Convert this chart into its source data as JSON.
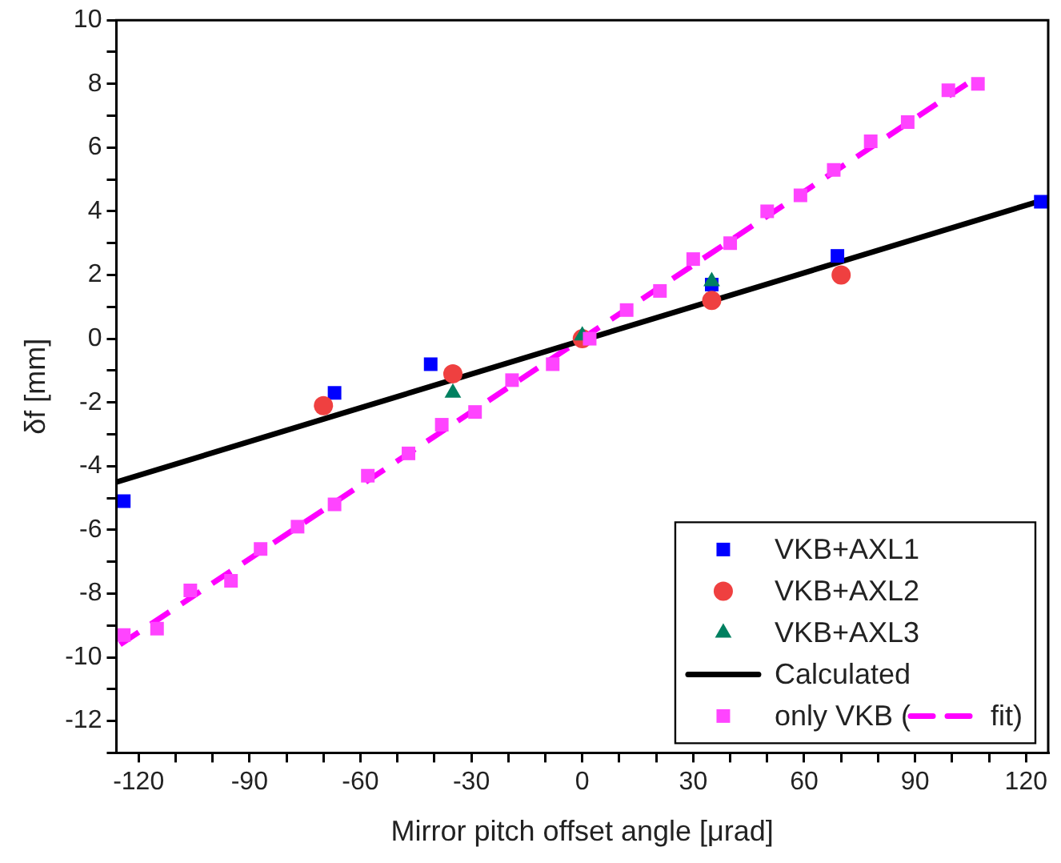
{
  "chart_data": {
    "type": "scatter",
    "xlabel": "Mirror pitch offset angle [μrad]",
    "ylabel": "δf [mm]",
    "xlim": [
      -126,
      126
    ],
    "xticks": [
      -120,
      {
        "value": -110,
        "label": null
      },
      {
        "value": -100,
        "label": null
      },
      -90,
      {
        "value": -80,
        "label": null
      },
      {
        "value": -70,
        "label": null
      },
      -60,
      {
        "value": -50,
        "label": null
      },
      {
        "value": -40,
        "label": null
      },
      -30,
      {
        "value": -20,
        "label": null
      },
      {
        "value": -10,
        "label": null
      },
      0,
      {
        "value": 10,
        "label": null
      },
      {
        "value": 20,
        "label": null
      },
      30,
      {
        "value": 40,
        "label": null
      },
      {
        "value": 50,
        "label": null
      },
      60,
      {
        "value": 70,
        "label": null
      },
      {
        "value": 80,
        "label": null
      },
      90,
      {
        "value": 100,
        "label": null
      },
      {
        "value": 110,
        "label": null
      },
      120
    ],
    "ylim": [
      -13,
      10
    ],
    "yticks": [
      {
        "value": -13,
        "label": null
      },
      -12,
      {
        "value": -11,
        "label": null
      },
      -10,
      {
        "value": -9,
        "label": null
      },
      -8,
      {
        "value": -7,
        "label": null
      },
      -6,
      {
        "value": -5,
        "label": null
      },
      -4,
      {
        "value": -3,
        "label": null
      },
      -2,
      {
        "value": -1,
        "label": null
      },
      0,
      {
        "value": 1,
        "label": null
      },
      2,
      {
        "value": 3,
        "label": null
      },
      4,
      {
        "value": 5,
        "label": null
      },
      6,
      {
        "value": 7,
        "label": null
      },
      8,
      {
        "value": 9,
        "label": null
      },
      10
    ],
    "grid": false,
    "legend": "bottom right",
    "series": [
      {
        "name": "VKB+AXL1",
        "type": "scatter",
        "marker": "square",
        "color": "#0000ff",
        "x": [
          -124,
          -67,
          -41,
          0,
          35,
          69,
          124
        ],
        "values": [
          -5.1,
          -1.7,
          -0.8,
          null,
          1.7,
          2.6,
          4.3
        ]
      },
      {
        "name": "VKB+AXL2",
        "type": "scatter",
        "marker": "circle",
        "color": "#ef4040",
        "x": [
          -70,
          -35,
          0,
          35,
          70
        ],
        "values": [
          -2.1,
          -1.1,
          0,
          1.2,
          2.0
        ]
      },
      {
        "name": "VKB+AXL3",
        "type": "scatter",
        "marker": "triangle",
        "color": "#008060",
        "x": [
          -35,
          0,
          35
        ],
        "values": [
          -1.7,
          0.1,
          1.8
        ]
      },
      {
        "name": "Calculated",
        "type": "line",
        "marker": "none",
        "line_style": "solid",
        "color": "#000000",
        "x": [
          -126,
          126
        ],
        "values": [
          -4.5,
          4.4
        ]
      },
      {
        "name": "only VKB (",
        "type": "scatter",
        "marker": "square",
        "color": "#ff44ff",
        "x": [
          -124,
          -115,
          -106,
          -95,
          -87,
          -77,
          -67,
          -58,
          -47,
          -38,
          -29,
          -19,
          -8,
          2,
          12,
          21,
          30,
          40,
          50,
          59,
          68,
          78,
          88,
          99,
          107
        ],
        "values": [
          -9.3,
          -9.1,
          -7.9,
          -7.6,
          -6.6,
          -5.9,
          -5.2,
          -4.3,
          -3.6,
          -2.7,
          -2.3,
          -1.3,
          -0.8,
          0,
          0.9,
          1.5,
          2.5,
          3.0,
          4.0,
          4.5,
          5.3,
          6.2,
          6.8,
          7.8,
          8.0
        ]
      },
      {
        "name": "fit)",
        "type": "line",
        "marker": "none",
        "line_style": "dashed",
        "color": "#ff00ff",
        "x": [
          -125,
          104
        ],
        "values": [
          -9.6,
          8.0
        ]
      }
    ]
  }
}
